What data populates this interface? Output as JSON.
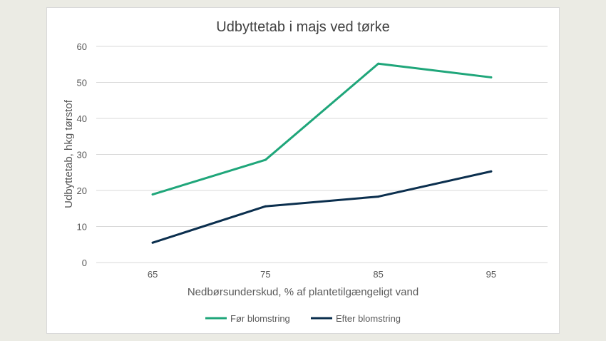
{
  "chart_data": {
    "type": "line",
    "title": "Udbyttetab i majs ved tørke",
    "xlabel": "Nedbørsunderskud, % af plantetilgængeligt vand",
    "ylabel": "Udbyttetab, hkg tørstof",
    "categories": [
      "65",
      "75",
      "85",
      "95"
    ],
    "ylim": [
      0,
      60
    ],
    "yticks": [
      "0",
      "10",
      "20",
      "30",
      "40",
      "50",
      "60"
    ],
    "grid": true,
    "legend_position": "bottom",
    "series": [
      {
        "name": "Før blomstring",
        "values": [
          18.9,
          28.5,
          55.2,
          51.4
        ],
        "color": "#1fa67a"
      },
      {
        "name": "Efter blomstring",
        "values": [
          5.5,
          15.6,
          18.3,
          25.3
        ],
        "color": "#0b2f4e"
      }
    ]
  }
}
